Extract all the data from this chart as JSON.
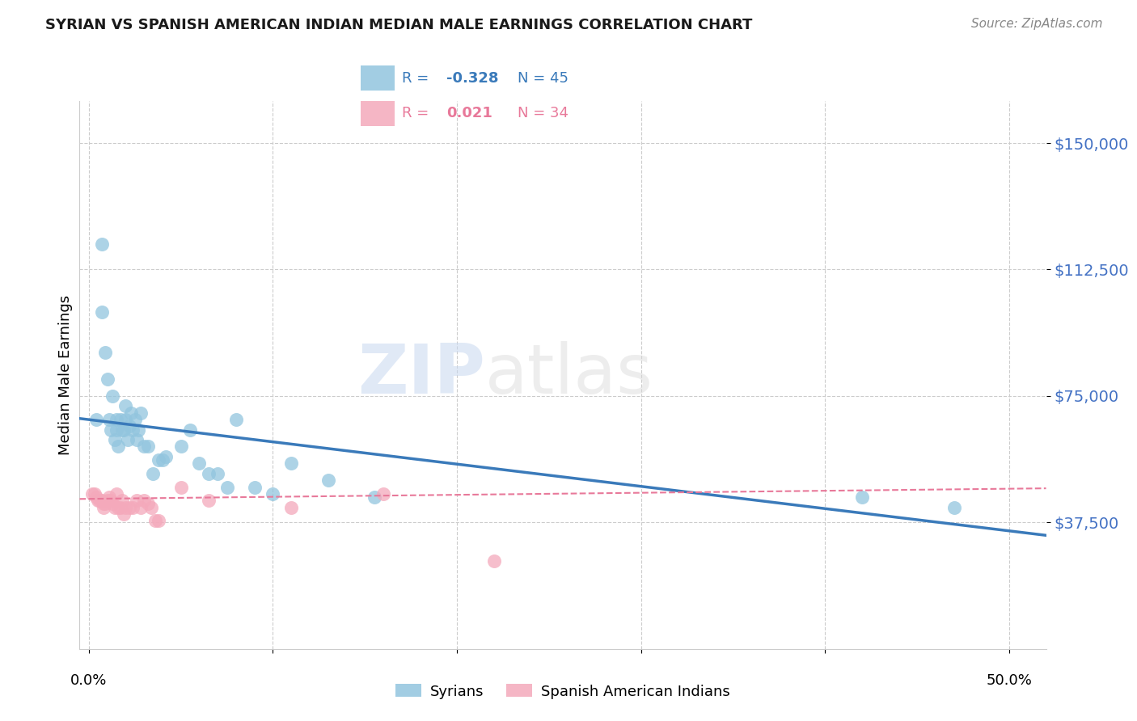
{
  "title": "SYRIAN VS SPANISH AMERICAN INDIAN MEDIAN MALE EARNINGS CORRELATION CHART",
  "source": "Source: ZipAtlas.com",
  "ylabel": "Median Male Earnings",
  "watermark": "ZIPatlas",
  "syrians_R": -0.328,
  "syrians_N": 45,
  "spanish_R": 0.021,
  "spanish_N": 34,
  "ytick_labels": [
    "$37,500",
    "$75,000",
    "$112,500",
    "$150,000"
  ],
  "ytick_values": [
    37500,
    75000,
    112500,
    150000
  ],
  "ymin": 0,
  "ymax": 162500,
  "xmin": -0.005,
  "xmax": 0.52,
  "blue_color": "#92c5de",
  "blue_line_color": "#3a7aba",
  "pink_color": "#f4a9bb",
  "pink_line_color": "#e8799a",
  "title_color": "#1a1a1a",
  "source_color": "#888888",
  "ytick_color": "#4472C4",
  "legend_border_color": "#aaaaaa",
  "grid_color": "#cccccc",
  "syrians_x": [
    0.004,
    0.007,
    0.007,
    0.009,
    0.01,
    0.011,
    0.012,
    0.013,
    0.014,
    0.015,
    0.015,
    0.016,
    0.017,
    0.018,
    0.019,
    0.02,
    0.02,
    0.021,
    0.022,
    0.023,
    0.024,
    0.025,
    0.026,
    0.027,
    0.028,
    0.03,
    0.032,
    0.035,
    0.038,
    0.04,
    0.042,
    0.05,
    0.055,
    0.06,
    0.065,
    0.07,
    0.075,
    0.08,
    0.09,
    0.1,
    0.11,
    0.13,
    0.155,
    0.42,
    0.47
  ],
  "syrians_y": [
    68000,
    120000,
    100000,
    88000,
    80000,
    68000,
    65000,
    75000,
    62000,
    68000,
    65000,
    60000,
    68000,
    65000,
    65000,
    72000,
    68000,
    62000,
    66000,
    70000,
    65000,
    68000,
    62000,
    65000,
    70000,
    60000,
    60000,
    52000,
    56000,
    56000,
    57000,
    60000,
    65000,
    55000,
    52000,
    52000,
    48000,
    68000,
    48000,
    46000,
    55000,
    50000,
    45000,
    45000,
    42000
  ],
  "spanish_x": [
    0.002,
    0.003,
    0.004,
    0.005,
    0.006,
    0.007,
    0.008,
    0.008,
    0.009,
    0.01,
    0.011,
    0.012,
    0.013,
    0.014,
    0.015,
    0.016,
    0.017,
    0.018,
    0.019,
    0.02,
    0.022,
    0.024,
    0.026,
    0.028,
    0.03,
    0.032,
    0.034,
    0.036,
    0.038,
    0.05,
    0.065,
    0.11,
    0.16,
    0.22
  ],
  "spanish_y": [
    46000,
    46000,
    45000,
    44000,
    44000,
    44000,
    43000,
    42000,
    43000,
    44000,
    45000,
    44000,
    43000,
    42000,
    46000,
    42000,
    42000,
    44000,
    40000,
    42000,
    42000,
    42000,
    44000,
    42000,
    44000,
    43000,
    42000,
    38000,
    38000,
    48000,
    44000,
    42000,
    46000,
    26000
  ]
}
